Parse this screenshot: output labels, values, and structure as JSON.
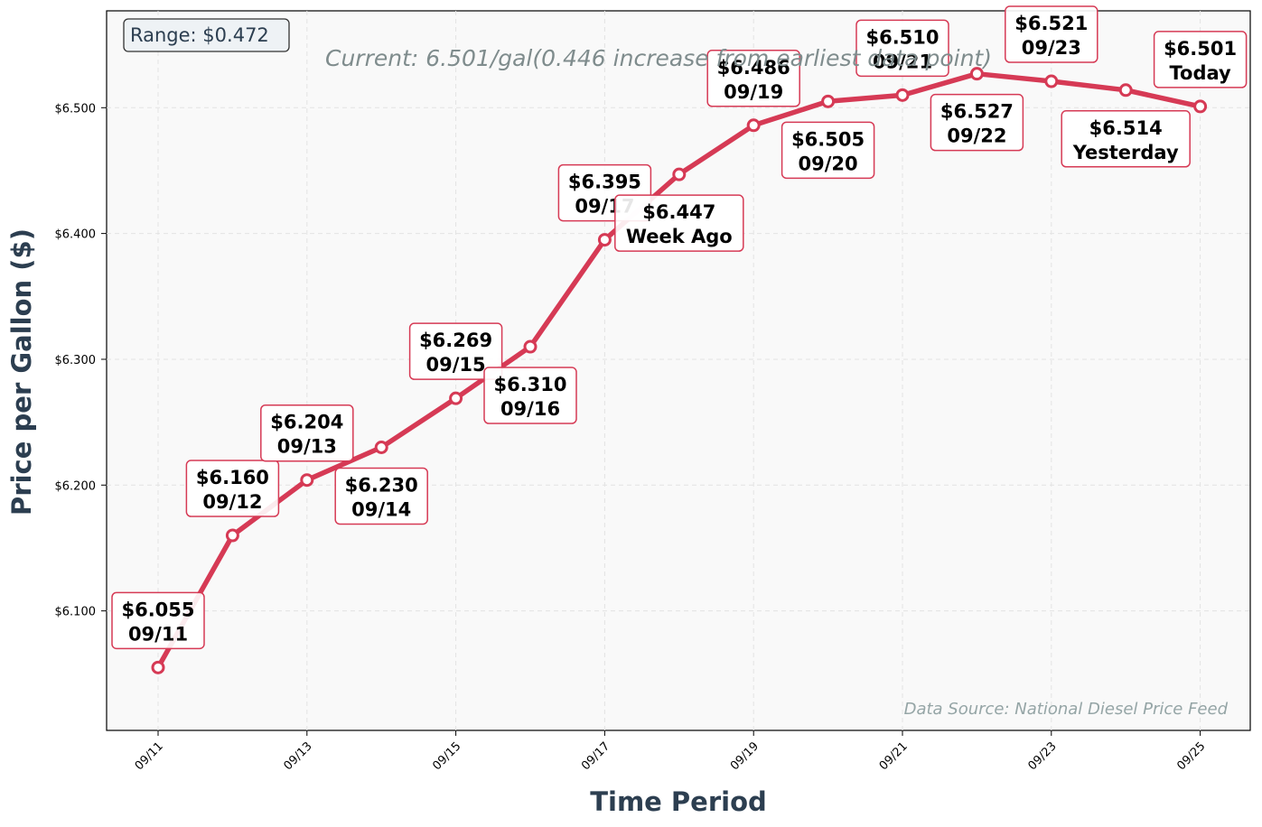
{
  "chart_data": {
    "type": "line",
    "xlabel": "Time Period",
    "ylabel": "Price per Gallon ($)",
    "ylim": [
      6.005,
      6.577
    ],
    "yticks": [
      6.1,
      6.2,
      6.3,
      6.4,
      6.5
    ],
    "ytick_labels": [
      "$6.100",
      "$6.200",
      "$6.300",
      "$6.400",
      "$6.500"
    ],
    "xticks": [
      "09/11",
      "09/13",
      "09/15",
      "09/17",
      "09/19",
      "09/21",
      "09/23",
      "09/25"
    ],
    "grid": true,
    "line_color": "#d63a55",
    "background_color": "#f9f9f9",
    "series": [
      {
        "points": [
          {
            "x": "09/11",
            "y": 6.055,
            "label_price": "$6.055",
            "label_date": "09/11"
          },
          {
            "x": "09/12",
            "y": 6.16,
            "label_price": "$6.160",
            "label_date": "09/12"
          },
          {
            "x": "09/13",
            "y": 6.204,
            "label_price": "$6.204",
            "label_date": "09/13"
          },
          {
            "x": "09/14",
            "y": 6.23,
            "label_price": "$6.230",
            "label_date": "09/14"
          },
          {
            "x": "09/15",
            "y": 6.269,
            "label_price": "$6.269",
            "label_date": "09/15"
          },
          {
            "x": "09/16",
            "y": 6.31,
            "label_price": "$6.310",
            "label_date": "09/16"
          },
          {
            "x": "09/17",
            "y": 6.395,
            "label_price": "$6.395",
            "label_date": "09/17"
          },
          {
            "x": "09/18",
            "y": 6.447,
            "label_price": "$6.447",
            "label_date": "Week Ago"
          },
          {
            "x": "09/19",
            "y": 6.486,
            "label_price": "$6.486",
            "label_date": "09/19"
          },
          {
            "x": "09/20",
            "y": 6.505,
            "label_price": "$6.505",
            "label_date": "09/20"
          },
          {
            "x": "09/21",
            "y": 6.51,
            "label_price": "$6.510",
            "label_date": "09/21"
          },
          {
            "x": "09/22",
            "y": 6.527,
            "label_price": "$6.527",
            "label_date": "09/22"
          },
          {
            "x": "09/23",
            "y": 6.521,
            "label_price": "$6.521",
            "label_date": "09/23"
          },
          {
            "x": "09/24",
            "y": 6.514,
            "label_price": "$6.514",
            "label_date": "Yesterday"
          },
          {
            "x": "09/25",
            "y": 6.501,
            "label_price": "$6.501",
            "label_date": "Today"
          }
        ]
      }
    ],
    "annotations": {
      "range": "Range: $0.472",
      "current": "Current: 6.501/gal(0.446 increase from earliest data point)",
      "source": "Data Source: National Diesel Price Feed"
    }
  }
}
